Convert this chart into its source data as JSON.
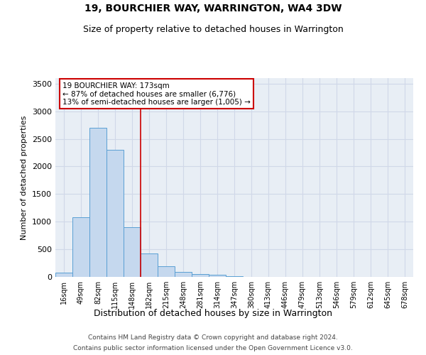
{
  "title": "19, BOURCHIER WAY, WARRINGTON, WA4 3DW",
  "subtitle": "Size of property relative to detached houses in Warrington",
  "xlabel": "Distribution of detached houses by size in Warrington",
  "ylabel": "Number of detached properties",
  "categories": [
    "16sqm",
    "49sqm",
    "82sqm",
    "115sqm",
    "148sqm",
    "182sqm",
    "215sqm",
    "248sqm",
    "281sqm",
    "314sqm",
    "347sqm",
    "380sqm",
    "413sqm",
    "446sqm",
    "479sqm",
    "513sqm",
    "546sqm",
    "579sqm",
    "612sqm",
    "645sqm",
    "678sqm"
  ],
  "values": [
    80,
    1080,
    2700,
    2300,
    900,
    420,
    190,
    90,
    55,
    35,
    15,
    5,
    5,
    0,
    0,
    0,
    0,
    0,
    0,
    0,
    0
  ],
  "bar_color": "#c5d8ee",
  "bar_edge_color": "#5a9fd4",
  "bg_color": "#e8eef5",
  "vline_x": 4.5,
  "vline_color": "#cc0000",
  "annotation_text": "19 BOURCHIER WAY: 173sqm\n← 87% of detached houses are smaller (6,776)\n13% of semi-detached houses are larger (1,005) →",
  "annotation_box_facecolor": "#ffffff",
  "annotation_box_edgecolor": "#cc0000",
  "footer_line1": "Contains HM Land Registry data © Crown copyright and database right 2024.",
  "footer_line2": "Contains public sector information licensed under the Open Government Licence v3.0.",
  "ylim": [
    0,
    3600
  ],
  "yticks": [
    0,
    500,
    1000,
    1500,
    2000,
    2500,
    3000,
    3500
  ],
  "grid_color": "#d0d8e8",
  "title_fontsize": 10,
  "subtitle_fontsize": 9,
  "ylabel_fontsize": 8,
  "xlabel_fontsize": 9
}
